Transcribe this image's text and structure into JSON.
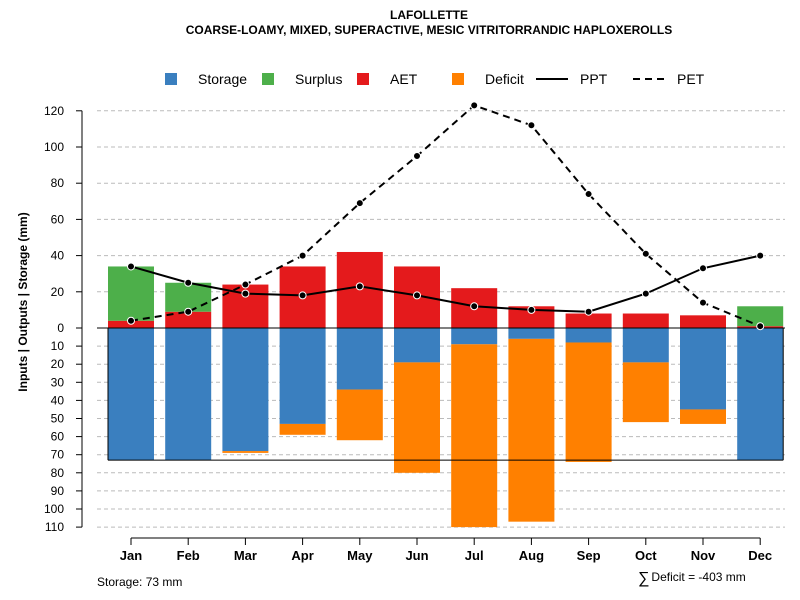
{
  "chart_data": {
    "type": "water-balance-bar-line",
    "title": "LAFOLLETTE",
    "subtitle": "COARSE-LOAMY, MIXED, SUPERACTIVE, MESIC VITRITORRANDIC HAPLOXEROLLS",
    "ylabel": "Inputs | Outputs | Storage    (mm)",
    "ylim": [
      -110,
      130
    ],
    "upper_ticks": [
      0,
      20,
      40,
      60,
      80,
      100,
      120
    ],
    "lower_ticks": [
      10,
      20,
      30,
      40,
      50,
      60,
      70,
      80,
      90,
      100,
      110
    ],
    "categories": [
      "Jan",
      "Feb",
      "Mar",
      "Apr",
      "May",
      "Jun",
      "Jul",
      "Aug",
      "Sep",
      "Oct",
      "Nov",
      "Dec"
    ],
    "legend": [
      {
        "key": "storage",
        "label": "Storage",
        "kind": "square"
      },
      {
        "key": "surplus",
        "label": "Surplus",
        "kind": "square"
      },
      {
        "key": "aet",
        "label": "AET",
        "kind": "square"
      },
      {
        "key": "deficit",
        "label": "Deficit",
        "kind": "square"
      },
      {
        "key": "ppt",
        "label": "PPT",
        "kind": "solid-line"
      },
      {
        "key": "pet",
        "label": "PET",
        "kind": "dashed-line"
      }
    ],
    "colors": {
      "storage": "#3A7FBF",
      "surplus": "#4DAF4A",
      "aet": "#E41A1C",
      "deficit": "#FF8000",
      "line": "#000000",
      "grid": "#BBBBBB"
    },
    "series": {
      "aet": [
        4,
        9,
        24,
        34,
        42,
        34,
        22,
        12,
        8,
        8,
        7,
        1
      ],
      "surplus": [
        30,
        16,
        0,
        0,
        0,
        0,
        0,
        0,
        0,
        0,
        0,
        11
      ],
      "storage": [
        73,
        73,
        68,
        53,
        34,
        19,
        9,
        6,
        8,
        19,
        45,
        73
      ],
      "deficit": [
        0,
        0,
        1,
        6,
        28,
        61,
        101,
        101,
        66,
        33,
        8,
        0
      ],
      "ppt": [
        34,
        25,
        19,
        18,
        23,
        18,
        12,
        10,
        9,
        19,
        33,
        40
      ],
      "pet": [
        4,
        9,
        24,
        40,
        69,
        95,
        123,
        112,
        74,
        41,
        14,
        1
      ]
    },
    "storage_capacity": 73,
    "storage_note": "Storage: 73 mm",
    "deficit_note": "Deficit = -403 mm"
  }
}
